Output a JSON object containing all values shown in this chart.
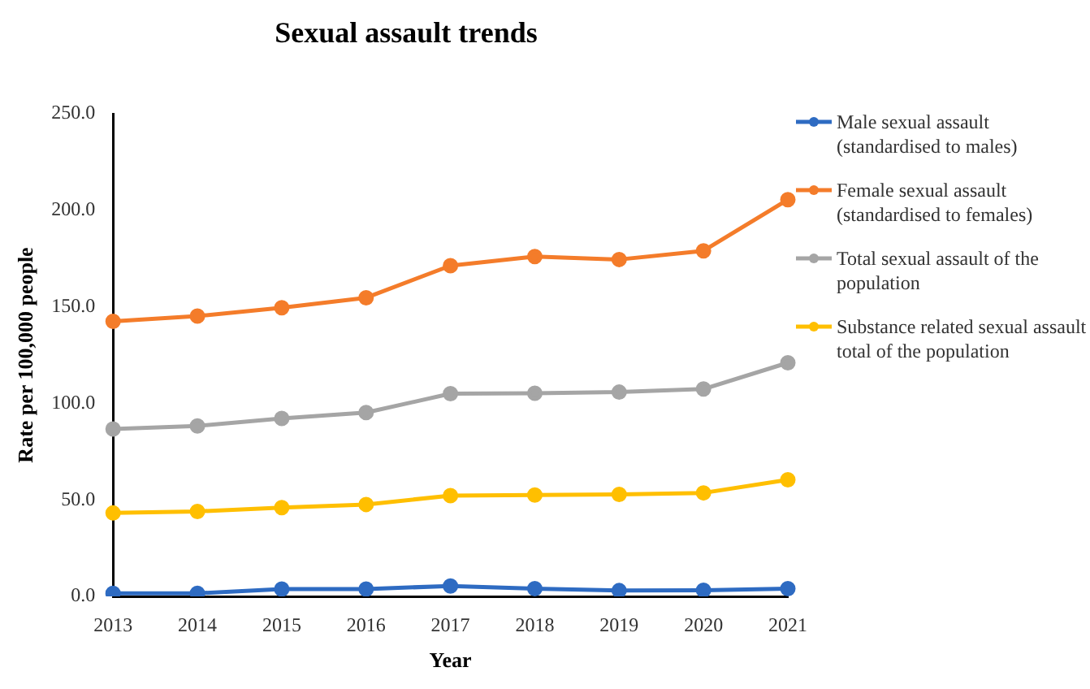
{
  "chart_data": {
    "type": "line",
    "title": "Sexual assault trends",
    "xlabel": "Year",
    "ylabel": "Rate per 100,000 people",
    "categories": [
      "2013",
      "2014",
      "2015",
      "2016",
      "2017",
      "2018",
      "2019",
      "2020",
      "2021"
    ],
    "series": [
      {
        "name": "Male sexual assault (standardised to males)",
        "color": "#2e6bc2",
        "values": [
          1.6,
          1.6,
          3.8,
          3.8,
          5.4,
          4.0,
          3.0,
          3.2,
          4.0
        ]
      },
      {
        "name": "Female sexual assault (standardised to females)",
        "color": "#f47c2a",
        "values": [
          142.5,
          145.2,
          149.5,
          154.7,
          171.3,
          176,
          174.5,
          179,
          205.5
        ]
      },
      {
        "name": "Total sexual assault of the population",
        "color": "#a5a5a5",
        "values": [
          86.7,
          88.3,
          92.2,
          95.2,
          105,
          105.2,
          105.8,
          107.4,
          121
        ]
      },
      {
        "name": "Substance related sexual assault total of the population",
        "color": "#ffbf00",
        "values": [
          43.2,
          44,
          46,
          47.6,
          52.2,
          52.5,
          52.8,
          53.6,
          60.4
        ]
      }
    ],
    "ylim": [
      0,
      250
    ],
    "yticks": [
      {
        "value": 0,
        "label": "0.0"
      },
      {
        "value": 50,
        "label": "50.0"
      },
      {
        "value": 100,
        "label": "100.0"
      },
      {
        "value": 150,
        "label": "150.0"
      },
      {
        "value": 200,
        "label": "200.0"
      },
      {
        "value": 250,
        "label": "250.0"
      }
    ],
    "grid": false,
    "legend": "right",
    "marker": "circle",
    "line_style": "solid"
  }
}
